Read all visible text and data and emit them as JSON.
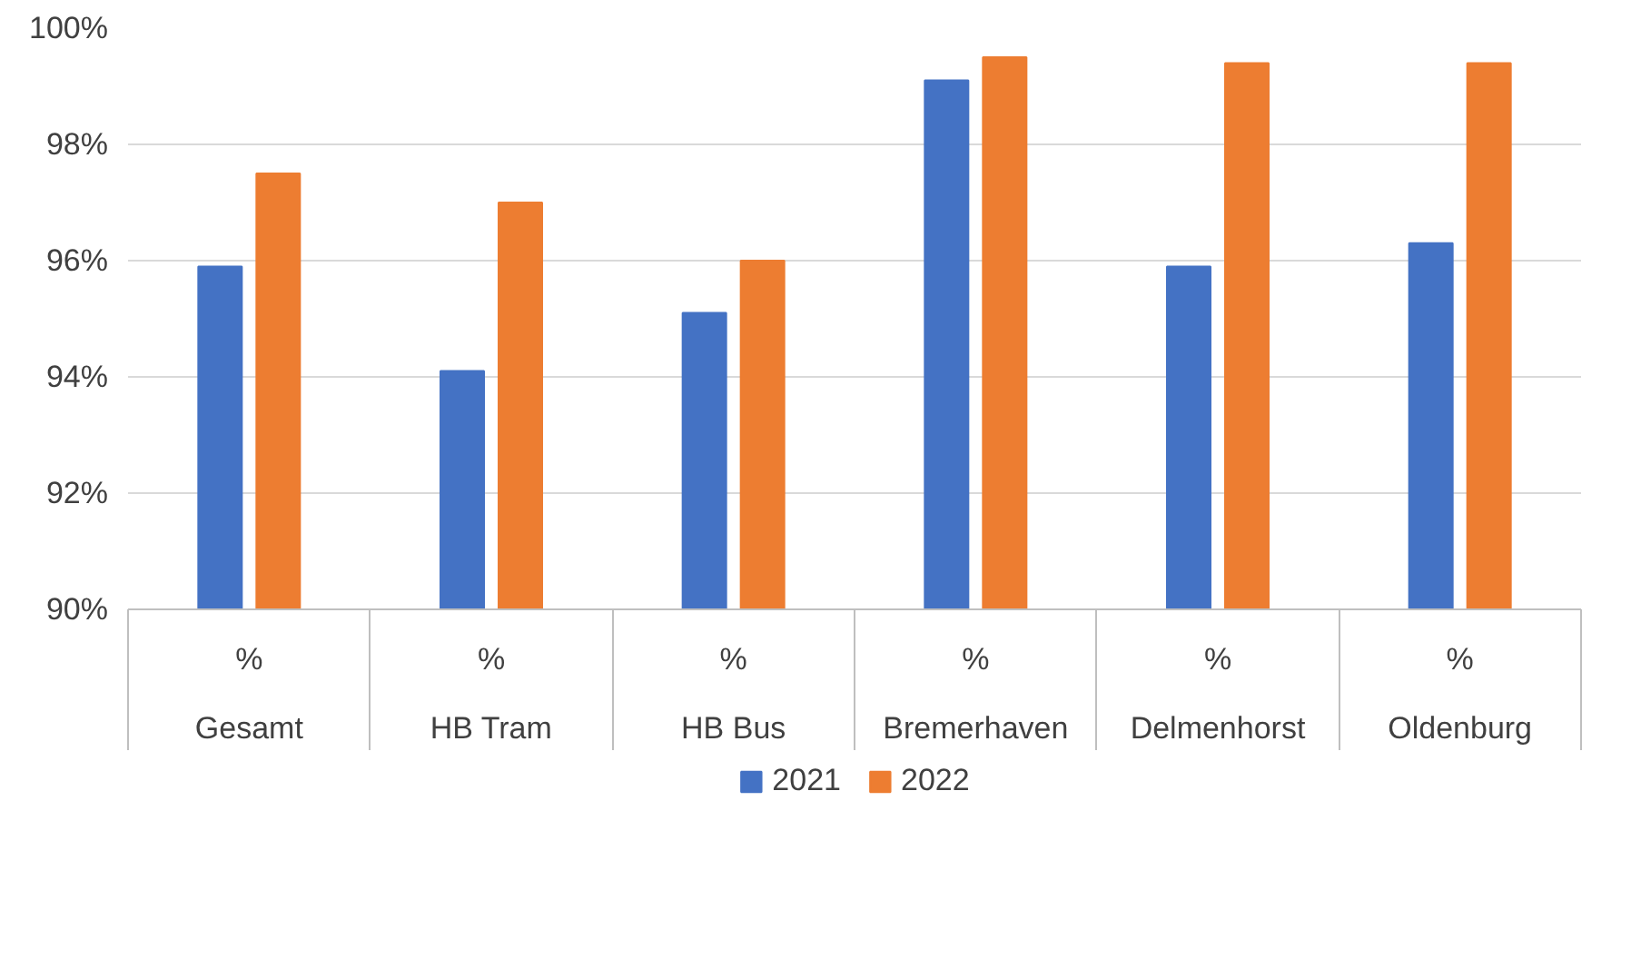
{
  "chart_data": {
    "type": "bar",
    "categories": [
      "Gesamt",
      "HB Tram",
      "HB Bus",
      "Bremerhaven",
      "Delmenhorst",
      "Oldenburg"
    ],
    "series": [
      {
        "name": "2021",
        "color": "#4472c4",
        "values": [
          95.9,
          94.1,
          95.1,
          99.1,
          95.9,
          96.3
        ]
      },
      {
        "name": "2022",
        "color": "#ed7d31",
        "values": [
          97.5,
          97.0,
          96.0,
          99.5,
          99.4,
          99.4
        ]
      }
    ],
    "annotations": [
      "%",
      "%",
      "%",
      "%",
      "%",
      "%"
    ],
    "ylim": [
      90,
      100
    ],
    "yticks": [
      {
        "value": 90,
        "label": "90%"
      },
      {
        "value": 92,
        "label": "92%"
      },
      {
        "value": 94,
        "label": "94%"
      },
      {
        "value": 96,
        "label": "96%"
      },
      {
        "value": 98,
        "label": "98%"
      },
      {
        "value": 100,
        "label": "100%"
      }
    ],
    "grid": "y",
    "legend": "bottom"
  }
}
